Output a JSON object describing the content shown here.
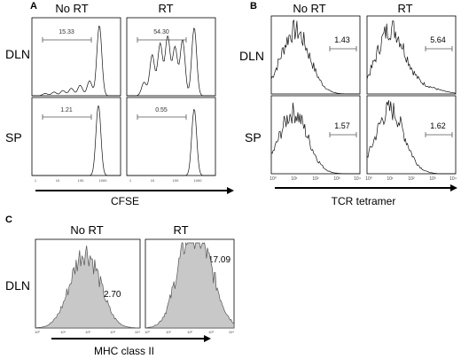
{
  "figure": {
    "panels": [
      {
        "letter": "A",
        "columns": [
          "No RT",
          "RT"
        ],
        "rows": [
          "DLN",
          "SP"
        ],
        "x_axis_title": "CFSE",
        "x_tick_labels": [
          "1",
          "10",
          "100",
          "1000"
        ],
        "gates": [
          [
            "15.33",
            "54.30"
          ],
          [
            "1.21",
            "0.55"
          ]
        ]
      },
      {
        "letter": "B",
        "columns": [
          "No RT",
          "RT"
        ],
        "rows": [
          "DLN",
          "SP"
        ],
        "x_axis_title": "TCR tetramer",
        "x_tick_labels": [
          "10⁰",
          "10¹",
          "10²",
          "10³",
          "10⁴"
        ],
        "gates": [
          [
            "1.43",
            "5.64"
          ],
          [
            "1.57",
            "1.62"
          ]
        ]
      },
      {
        "letter": "C",
        "columns": [
          "No RT",
          "RT"
        ],
        "rows": [
          "DLN"
        ],
        "x_axis_title": "MHC class II",
        "x_tick_labels": [
          "10⁰",
          "10¹",
          "10²",
          "10³",
          "10⁴"
        ],
        "gates": [
          [
            "2.70",
            "17.09"
          ]
        ]
      }
    ]
  },
  "chart_data": [
    {
      "panel": "A",
      "type": "histogram",
      "xlabel": "CFSE",
      "xscale": "log",
      "xlim": [
        1,
        10000
      ],
      "series": [
        {
          "name": "No RT",
          "row": "DLN",
          "gate_percent": 15.33,
          "peaks": [
            {
              "x": 4,
              "h": 0.03
            },
            {
              "x": 10,
              "h": 0.05
            },
            {
              "x": 25,
              "h": 0.07
            },
            {
              "x": 60,
              "h": 0.1
            },
            {
              "x": 150,
              "h": 0.14
            },
            {
              "x": 400,
              "h": 0.2
            },
            {
              "x": 1100,
              "h": 0.95
            }
          ]
        },
        {
          "name": "RT",
          "row": "DLN",
          "gate_percent": 54.3,
          "peaks": [
            {
              "x": 6,
              "h": 0.18
            },
            {
              "x": 14,
              "h": 0.55
            },
            {
              "x": 32,
              "h": 0.7
            },
            {
              "x": 70,
              "h": 0.8
            },
            {
              "x": 150,
              "h": 0.65
            },
            {
              "x": 330,
              "h": 0.75
            },
            {
              "x": 1100,
              "h": 0.92
            }
          ]
        },
        {
          "name": "No RT",
          "row": "SP",
          "gate_percent": 1.21,
          "peaks": [
            {
              "x": 1000,
              "h": 0.95
            }
          ]
        },
        {
          "name": "RT",
          "row": "SP",
          "gate_percent": 0.55,
          "peaks": [
            {
              "x": 1100,
              "h": 0.9
            }
          ]
        }
      ]
    },
    {
      "panel": "B",
      "type": "histogram",
      "xlabel": "TCR tetramer",
      "xscale": "log",
      "xlim": [
        1,
        10000
      ],
      "series": [
        {
          "name": "No RT",
          "row": "DLN",
          "gate_percent": 1.43,
          "peaks": [
            {
              "x": 12,
              "h": 0.85
            }
          ]
        },
        {
          "name": "RT",
          "row": "DLN",
          "gate_percent": 5.64,
          "peaks": [
            {
              "x": 12,
              "h": 0.88
            },
            {
              "x": 500,
              "h": 0.08
            }
          ]
        },
        {
          "name": "No RT",
          "row": "SP",
          "gate_percent": 1.57,
          "peaks": [
            {
              "x": 10,
              "h": 0.82
            }
          ]
        },
        {
          "name": "RT",
          "row": "SP",
          "gate_percent": 1.62,
          "peaks": [
            {
              "x": 11,
              "h": 0.86
            }
          ]
        }
      ]
    },
    {
      "panel": "C",
      "type": "histogram",
      "xlabel": "MHC class II",
      "xscale": "log",
      "xlim": [
        1,
        10000
      ],
      "series": [
        {
          "name": "No RT",
          "row": "DLN",
          "gate_percent": 2.7,
          "peaks": [
            {
              "x": 80,
              "h": 0.9
            }
          ]
        },
        {
          "name": "RT",
          "row": "DLN",
          "gate_percent": 17.09,
          "peaks": [
            {
              "x": 80,
              "h": 0.9
            },
            {
              "x": 600,
              "h": 0.6
            }
          ]
        }
      ]
    }
  ]
}
